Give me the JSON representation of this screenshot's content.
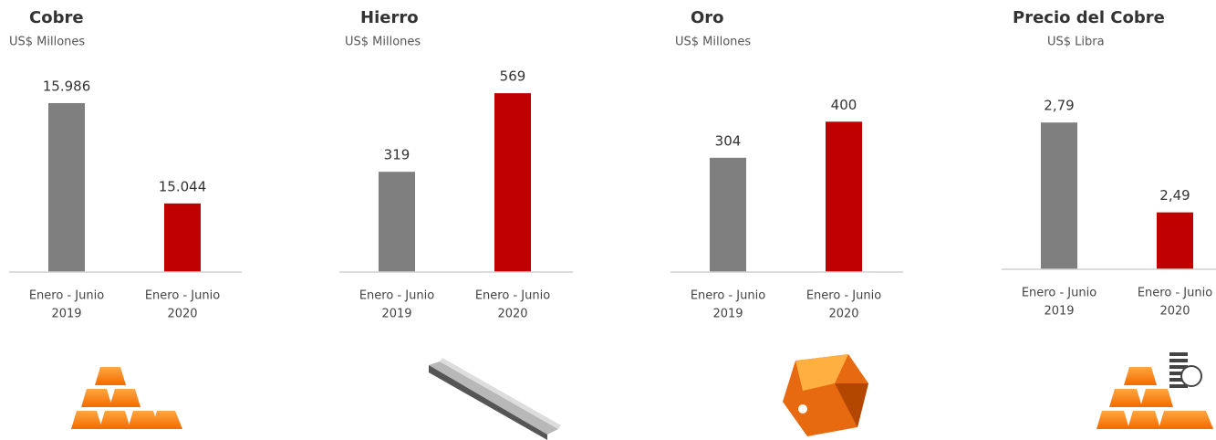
{
  "chart_data": [
    {
      "type": "bar",
      "title": "Cobre",
      "subtitle": "US$ Millones",
      "categories": [
        [
          "Enero - Junio",
          "2019"
        ],
        [
          "Enero - Junio",
          "2020"
        ]
      ],
      "values": [
        15986,
        15044
      ],
      "value_labels": [
        "15.986",
        "15.044"
      ],
      "colors": [
        "#7f7f7f",
        "#c00000"
      ],
      "ylim": [
        14400,
        16200
      ]
    },
    {
      "type": "bar",
      "title": "Hierro",
      "subtitle": "US$ Millones",
      "categories": [
        [
          "Enero - Junio",
          "2019"
        ],
        [
          "Enero - Junio",
          "2020"
        ]
      ],
      "values": [
        319,
        569
      ],
      "colors": [
        "#7f7f7f",
        "#c00000"
      ],
      "ylim": [
        0,
        610
      ]
    },
    {
      "type": "bar",
      "title": "Oro",
      "subtitle": "US$ Millones",
      "categories": [
        [
          "Enero - Junio",
          "2019"
        ],
        [
          "Enero - Junio",
          "2020"
        ]
      ],
      "values": [
        304,
        400
      ],
      "colors": [
        "#7f7f7f",
        "#c00000"
      ],
      "ylim": [
        0,
        510
      ]
    },
    {
      "type": "bar",
      "title": "Precio del Cobre",
      "subtitle": "US$ Libra",
      "categories": [
        [
          "Enero - Junio",
          "2019"
        ],
        [
          "Enero - Junio",
          "2020"
        ]
      ],
      "values": [
        2.79,
        2.49
      ],
      "value_labels": [
        "2,79",
        "2,49"
      ],
      "colors": [
        "#7f7f7f",
        "#c00000"
      ],
      "ylim": [
        2.3,
        2.94
      ]
    }
  ]
}
